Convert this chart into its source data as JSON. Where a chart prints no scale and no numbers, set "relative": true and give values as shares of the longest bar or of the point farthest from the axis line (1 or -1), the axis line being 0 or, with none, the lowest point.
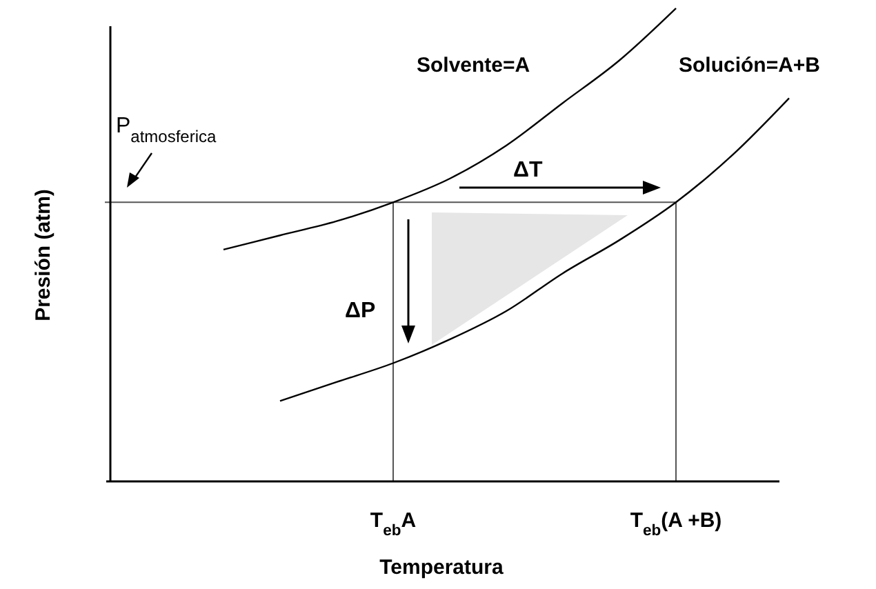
{
  "chart_data": {
    "type": "line",
    "relative": true,
    "xlabel": "Temperatura",
    "ylabel": "Presión (atm)",
    "categories": [
      null,
      null,
      null,
      null,
      null,
      "T$_{eb}$A",
      null,
      null,
      null,
      null,
      "T$_{eb}$(A +B)",
      null,
      null
    ],
    "series": [
      {
        "name": "Solvente=A",
        "color": "#000000",
        "values": [
          null,
          null,
          0.49,
          0.52,
          0.55,
          0.59,
          0.64,
          0.71,
          0.8,
          0.89,
          1,
          null,
          null
        ]
      },
      {
        "name": "Solución=A+B",
        "color": "#000000",
        "values": [
          null,
          null,
          null,
          0.17,
          0.21,
          0.25,
          0.3,
          0.36,
          0.44,
          0.51,
          0.59,
          0.69,
          0.81
        ]
      }
    ],
    "ref_lines": [
      {
        "axis": "y",
        "value": 0.59,
        "label": "P$_{atmosferica}$"
      },
      {
        "axis": "x",
        "value": "T$_{eb}$A"
      },
      {
        "axis": "x",
        "value": "T$_{eb}$(A +B)"
      }
    ],
    "annotations": [
      "ΔT",
      "ΔP"
    ],
    "legend": false,
    "line_style": "solid"
  }
}
